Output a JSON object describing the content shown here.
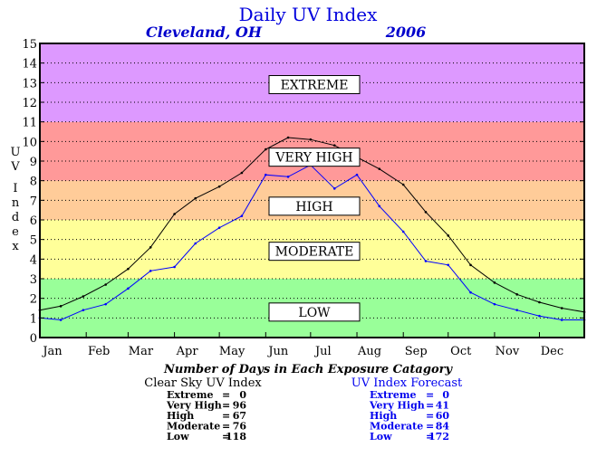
{
  "chart_data": {
    "type": "line",
    "title": "Daily UV Index",
    "location": "Cleveland, OH",
    "year": "2006",
    "ylabel": "UV Index",
    "xlabel": "",
    "ylim": [
      0,
      15
    ],
    "y_ticks": [
      "0",
      "1",
      "2",
      "3",
      "4",
      "5",
      "6",
      "7",
      "8",
      "9",
      "10",
      "11",
      "12",
      "13",
      "14",
      "15"
    ],
    "x_tick_labels": [
      "Jan",
      "Feb",
      "Mar",
      "Apr",
      "May",
      "Jun",
      "Jul",
      "Aug",
      "Sep",
      "Oct",
      "Nov",
      "Dec"
    ],
    "x_tick_days": [
      1,
      32,
      60,
      91,
      121,
      152,
      182,
      213,
      244,
      274,
      305,
      335
    ],
    "bands": [
      {
        "label": "LOW",
        "from": 0,
        "to": 3,
        "color": "#99ff99",
        "label_y": 1.3
      },
      {
        "label": "MODERATE",
        "from": 3,
        "to": 6,
        "color": "#ffff99",
        "label_y": 4.4
      },
      {
        "label": "HIGH",
        "from": 6,
        "to": 8,
        "color": "#ffcc99",
        "label_y": 6.7
      },
      {
        "label": "VERY HIGH",
        "from": 8,
        "to": 11,
        "color": "#ff9999",
        "label_y": 9.2
      },
      {
        "label": "EXTREME",
        "from": 11,
        "to": 15,
        "color": "#dd99ff",
        "label_y": 12.9
      }
    ],
    "series": [
      {
        "name": "Clear Sky UV Index",
        "color": "#000000",
        "points": [
          [
            1,
            1.4
          ],
          [
            15,
            1.6
          ],
          [
            30,
            2.1
          ],
          [
            45,
            2.7
          ],
          [
            60,
            3.5
          ],
          [
            75,
            4.6
          ],
          [
            91,
            6.3
          ],
          [
            105,
            7.1
          ],
          [
            121,
            7.7
          ],
          [
            136,
            8.4
          ],
          [
            152,
            9.6
          ],
          [
            167,
            10.2
          ],
          [
            182,
            10.1
          ],
          [
            198,
            9.8
          ],
          [
            213,
            9.2
          ],
          [
            228,
            8.6
          ],
          [
            244,
            7.8
          ],
          [
            259,
            6.4
          ],
          [
            274,
            5.2
          ],
          [
            289,
            3.7
          ],
          [
            305,
            2.8
          ],
          [
            320,
            2.2
          ],
          [
            335,
            1.8
          ],
          [
            350,
            1.5
          ],
          [
            365,
            1.3
          ]
        ]
      },
      {
        "name": "UV Index Forecast",
        "color": "#0000ff",
        "points": [
          [
            1,
            1.0
          ],
          [
            15,
            0.9
          ],
          [
            30,
            1.4
          ],
          [
            45,
            1.7
          ],
          [
            60,
            2.5
          ],
          [
            75,
            3.4
          ],
          [
            91,
            3.6
          ],
          [
            105,
            4.8
          ],
          [
            121,
            5.6
          ],
          [
            136,
            6.2
          ],
          [
            152,
            8.3
          ],
          [
            167,
            8.2
          ],
          [
            182,
            8.8
          ],
          [
            198,
            7.6
          ],
          [
            213,
            8.3
          ],
          [
            228,
            6.7
          ],
          [
            244,
            5.4
          ],
          [
            259,
            3.9
          ],
          [
            274,
            3.7
          ],
          [
            289,
            2.3
          ],
          [
            305,
            1.7
          ],
          [
            320,
            1.4
          ],
          [
            335,
            1.1
          ],
          [
            350,
            0.9
          ],
          [
            365,
            0.9
          ]
        ]
      }
    ],
    "summary": {
      "heading": "Number of Days in Each Exposure Catagory",
      "clear_sky": {
        "title": "Clear Sky UV Index",
        "rows": [
          {
            "label": "Extreme",
            "value": "0"
          },
          {
            "label": "Very High",
            "value": "96"
          },
          {
            "label": "High",
            "value": "67"
          },
          {
            "label": "Moderate",
            "value": "76"
          },
          {
            "label": "Low",
            "value": "118"
          }
        ]
      },
      "forecast": {
        "title": "UV Index Forecast",
        "rows": [
          {
            "label": "Extreme",
            "value": "0"
          },
          {
            "label": "Very High",
            "value": "41"
          },
          {
            "label": "High",
            "value": "60"
          },
          {
            "label": "Moderate",
            "value": "84"
          },
          {
            "label": "Low",
            "value": "172"
          }
        ]
      }
    }
  }
}
